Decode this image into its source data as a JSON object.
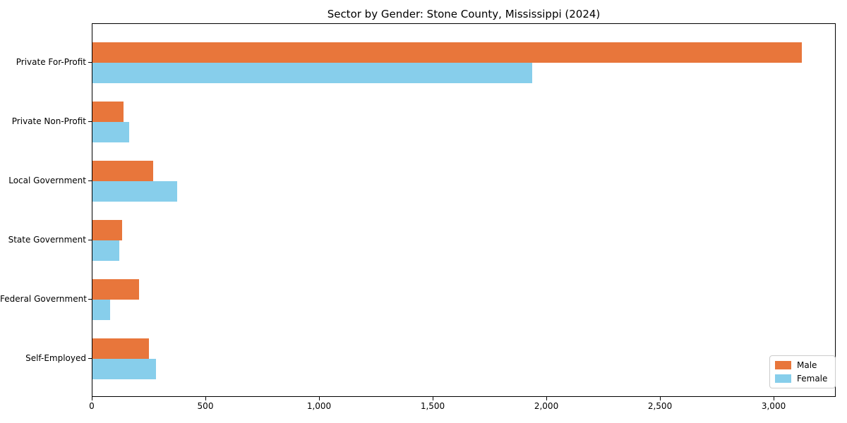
{
  "chart_data": {
    "type": "bar",
    "orientation": "horizontal",
    "title": "Sector by Gender: Stone County, Mississippi (2024)",
    "categories": [
      "Private For-Profit",
      "Private Non-Profit",
      "Local Government",
      "State Government",
      "Federal Government",
      "Self-Employed"
    ],
    "series": [
      {
        "name": "Male",
        "color": "#E8763B",
        "values": [
          3120,
          137,
          266,
          131,
          205,
          249
        ]
      },
      {
        "name": "Female",
        "color": "#87CEEB",
        "values": [
          1935,
          160,
          373,
          117,
          78,
          280
        ]
      }
    ],
    "xlabel": "",
    "ylabel": "",
    "xlim": [
      0,
      3270
    ],
    "xticks": [
      0,
      500,
      1000,
      1500,
      2000,
      2500,
      3000
    ],
    "xtick_labels": [
      "0",
      "500",
      "1,000",
      "1,500",
      "2,000",
      "2,500",
      "3,000"
    ],
    "grid": false,
    "legend": {
      "position": "lower right",
      "entries": [
        "Male",
        "Female"
      ]
    }
  }
}
